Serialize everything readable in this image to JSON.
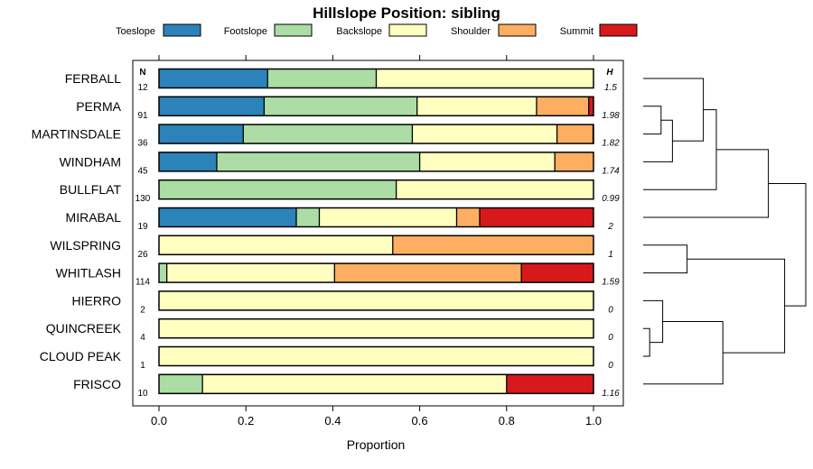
{
  "chart_data": {
    "type": "bar",
    "orientation": "horizontal",
    "stacked": true,
    "title": "Hillslope Position: sibling",
    "xlabel": "Proportion",
    "xlim": [
      0,
      1
    ],
    "x_ticks": [
      "0.0",
      "0.2",
      "0.4",
      "0.6",
      "0.8",
      "1.0"
    ],
    "legend_position": "top",
    "n_header": "N",
    "h_header": "H",
    "series": [
      {
        "name": "Toeslope",
        "color": "#2b83ba"
      },
      {
        "name": "Footslope",
        "color": "#abdda4"
      },
      {
        "name": "Backslope",
        "color": "#ffffbf"
      },
      {
        "name": "Shoulder",
        "color": "#fdae61"
      },
      {
        "name": "Summit",
        "color": "#d7191c"
      }
    ],
    "rows": [
      {
        "label": "FERBALL",
        "n": "12",
        "h": "1.5",
        "values": [
          0.25,
          0.25,
          0.5,
          0,
          0
        ]
      },
      {
        "label": "PERMA",
        "n": "91",
        "h": "1.98",
        "values": [
          0.242,
          0.352,
          0.275,
          0.12,
          0.011
        ]
      },
      {
        "label": "MARTINSDALE",
        "n": "36",
        "h": "1.82",
        "values": [
          0.194,
          0.389,
          0.333,
          0.083,
          0
        ]
      },
      {
        "label": "WINDHAM",
        "n": "45",
        "h": "1.74",
        "values": [
          0.133,
          0.467,
          0.311,
          0.089,
          0
        ]
      },
      {
        "label": "BULLFLAT",
        "n": "130",
        "h": "0.99",
        "values": [
          0,
          0.546,
          0.454,
          0,
          0
        ]
      },
      {
        "label": "MIRABAL",
        "n": "19",
        "h": "2",
        "values": [
          0.316,
          0.053,
          0.316,
          0.053,
          0.263
        ]
      },
      {
        "label": "WILSPRING",
        "n": "26",
        "h": "1",
        "values": [
          0,
          0,
          0.538,
          0.462,
          0
        ]
      },
      {
        "label": "WHITLASH",
        "n": "114",
        "h": "1.59",
        "values": [
          0,
          0.018,
          0.386,
          0.43,
          0.167
        ]
      },
      {
        "label": "HIERRO",
        "n": "2",
        "h": "0",
        "values": [
          0,
          0,
          1,
          0,
          0
        ]
      },
      {
        "label": "QUINCREEK",
        "n": "4",
        "h": "0",
        "values": [
          0,
          0,
          1,
          0,
          0
        ]
      },
      {
        "label": "CLOUD PEAK",
        "n": "1",
        "h": "0",
        "values": [
          0,
          0,
          1,
          0,
          0
        ]
      },
      {
        "label": "FRISCO",
        "n": "10",
        "h": "1.16",
        "values": [
          0,
          0.1,
          0.7,
          0,
          0.2
        ]
      }
    ],
    "dendrogram": [
      {
        "kind": "leaf",
        "row": 0
      },
      {
        "kind": "leaf",
        "row": 1
      },
      {
        "kind": "leaf",
        "row": 2
      },
      {
        "kind": "leaf",
        "row": 3
      },
      {
        "kind": "leaf",
        "row": 4
      },
      {
        "kind": "leaf",
        "row": 5
      },
      {
        "kind": "leaf",
        "row": 6
      },
      {
        "kind": "leaf",
        "row": 7
      },
      {
        "kind": "leaf",
        "row": 8
      },
      {
        "kind": "leaf",
        "row": 9
      },
      {
        "kind": "leaf",
        "row": 10
      },
      {
        "kind": "leaf",
        "row": 11
      },
      {
        "kind": "merge",
        "a": 1,
        "b": 2,
        "height": 0.11
      },
      {
        "kind": "merge",
        "a": 12,
        "b": 3,
        "height": 0.18
      },
      {
        "kind": "merge",
        "a": 0,
        "b": 13,
        "height": 0.37
      },
      {
        "kind": "merge",
        "a": 14,
        "b": 4,
        "height": 0.45
      },
      {
        "kind": "merge",
        "a": 15,
        "b": 5,
        "height": 0.77
      },
      {
        "kind": "merge",
        "a": 6,
        "b": 7,
        "height": 0.27
      },
      {
        "kind": "merge",
        "a": 9,
        "b": 10,
        "height": 0.04
      },
      {
        "kind": "merge",
        "a": 8,
        "b": 18,
        "height": 0.12
      },
      {
        "kind": "merge",
        "a": 19,
        "b": 11,
        "height": 0.49
      },
      {
        "kind": "merge",
        "a": 17,
        "b": 20,
        "height": 0.87
      },
      {
        "kind": "merge",
        "a": 16,
        "b": 21,
        "height": 1.0
      }
    ]
  }
}
